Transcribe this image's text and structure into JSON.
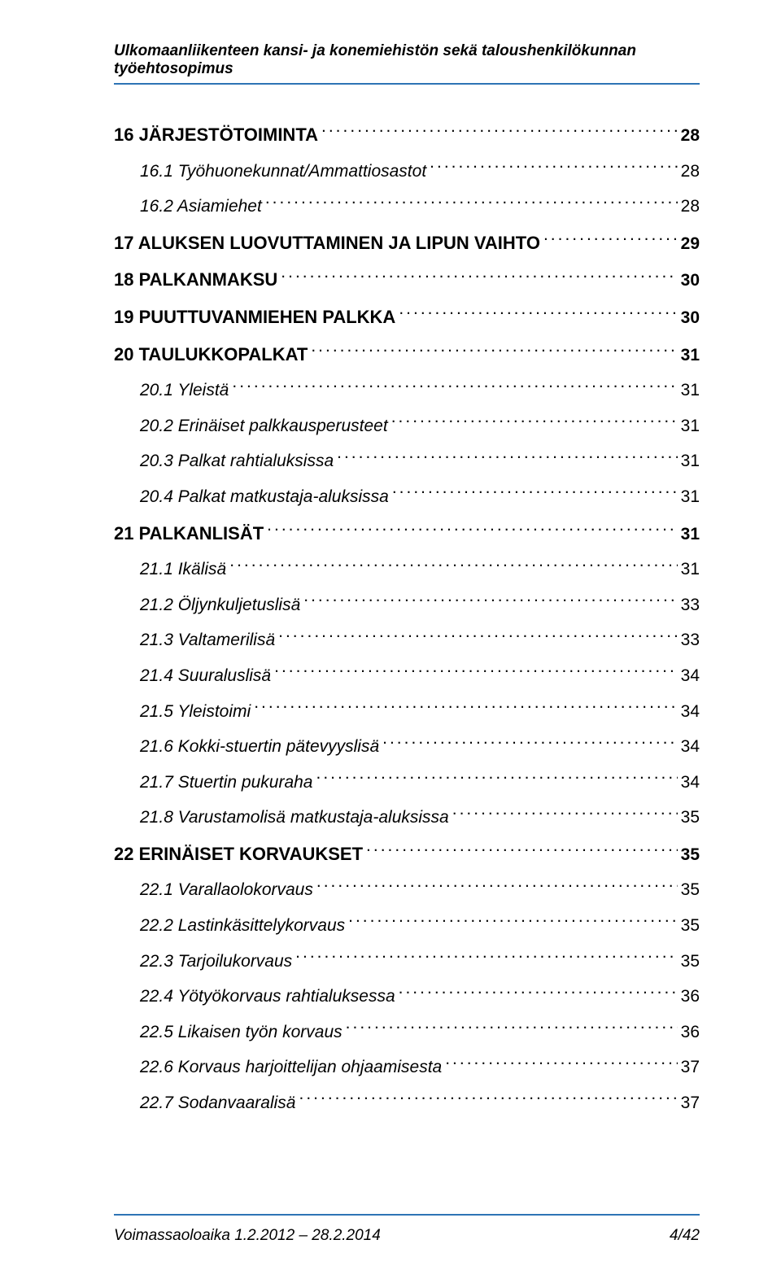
{
  "header": {
    "title": "Ulkomaanliikenteen kansi- ja konemiehistön sekä taloushenkilökunnan työehtosopimus",
    "rule_color": "#2e74b5"
  },
  "toc": {
    "entries": [
      {
        "level": "main",
        "label": "16 JÄRJESTÖTOIMINTA",
        "page": "28"
      },
      {
        "level": "sub",
        "label": "16.1 Työhuonekunnat/Ammattiosastot",
        "page": "28"
      },
      {
        "level": "sub",
        "label": "16.2 Asiamiehet",
        "page": "28"
      },
      {
        "level": "main",
        "label": "17 ALUKSEN LUOVUTTAMINEN JA LIPUN VAIHTO",
        "page": "29"
      },
      {
        "level": "main",
        "label": "18 PALKANMAKSU",
        "page": "30"
      },
      {
        "level": "main",
        "label": "19 PUUTTUVANMIEHEN PALKKA",
        "page": "30"
      },
      {
        "level": "main",
        "label": "20 TAULUKKOPALKAT",
        "page": "31"
      },
      {
        "level": "sub",
        "label": "20.1 Yleistä",
        "page": "31"
      },
      {
        "level": "sub",
        "label": "20.2 Erinäiset palkkausperusteet",
        "page": "31"
      },
      {
        "level": "sub",
        "label": "20.3 Palkat rahtialuksissa",
        "page": "31"
      },
      {
        "level": "sub",
        "label": "20.4 Palkat matkustaja-aluksissa",
        "page": "31"
      },
      {
        "level": "main",
        "label": "21 PALKANLISÄT",
        "page": "31"
      },
      {
        "level": "sub",
        "label": "21.1 Ikälisä",
        "page": "31"
      },
      {
        "level": "sub",
        "label": "21.2 Öljynkuljetuslisä",
        "page": "33"
      },
      {
        "level": "sub",
        "label": "21.3 Valtamerilisä",
        "page": "33"
      },
      {
        "level": "sub",
        "label": "21.4 Suuraluslisä",
        "page": "34"
      },
      {
        "level": "sub",
        "label": "21.5 Yleistoimi",
        "page": "34"
      },
      {
        "level": "sub",
        "label": "21.6 Kokki-stuertin pätevyyslisä",
        "page": "34"
      },
      {
        "level": "sub",
        "label": "21.7 Stuertin pukuraha",
        "page": "34"
      },
      {
        "level": "sub",
        "label": "21.8 Varustamolisä matkustaja-aluksissa",
        "page": "35"
      },
      {
        "level": "main",
        "label": "22 ERINÄISET KORVAUKSET",
        "page": "35"
      },
      {
        "level": "sub",
        "label": "22.1 Varallaolokorvaus",
        "page": "35"
      },
      {
        "level": "sub",
        "label": "22.2 Lastinkäsittelykorvaus",
        "page": "35"
      },
      {
        "level": "sub",
        "label": "22.3 Tarjoilukorvaus",
        "page": "35"
      },
      {
        "level": "sub",
        "label": "22.4 Yötyökorvaus rahtialuksessa",
        "page": "36"
      },
      {
        "level": "sub",
        "label": "22.5 Likaisen työn korvaus",
        "page": "36"
      },
      {
        "level": "sub",
        "label": "22.6 Korvaus harjoittelijan ohjaamisesta",
        "page": "37"
      },
      {
        "level": "sub",
        "label": "22.7 Sodanvaaralisä",
        "page": "37"
      }
    ]
  },
  "footer": {
    "rule_color": "#2e74b5",
    "left": "Voimassaoloaika 1.2.2012 – 28.2.2014",
    "right": "4/42"
  }
}
